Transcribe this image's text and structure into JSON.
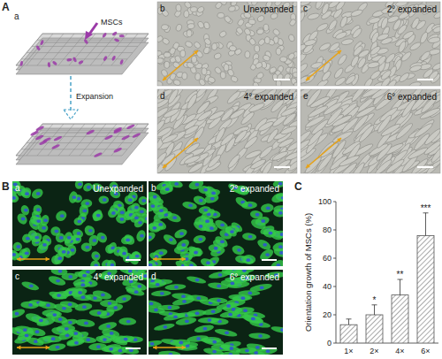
{
  "panel_labels": [
    "A",
    "B",
    "C"
  ],
  "panel_a": {
    "schematic_letter": "a",
    "cells_label": "MSCs",
    "arrow_label": "Expansion",
    "images": [
      {
        "letter": "b",
        "label": "Unexpanded"
      },
      {
        "letter": "c",
        "label": "2° expanded"
      },
      {
        "letter": "d",
        "label": "4° expanded"
      },
      {
        "letter": "e",
        "label": "6° expanded"
      }
    ]
  },
  "panel_b": {
    "images": [
      {
        "letter": "a",
        "label": "Unexpanded"
      },
      {
        "letter": "b",
        "label": "2° expanded"
      },
      {
        "letter": "c",
        "label": "4° expanded"
      },
      {
        "letter": "d",
        "label": "6° expanded"
      }
    ]
  },
  "chart_data": {
    "type": "bar",
    "y_label": "Orientation growth of MSCs (%)",
    "categories": [
      "1×",
      "2×",
      "4×",
      "6×"
    ],
    "values": [
      13,
      20,
      34,
      76
    ],
    "errors": [
      4,
      7,
      11,
      16
    ],
    "annotations": [
      null,
      "*",
      "**",
      "***"
    ],
    "color": "#555555",
    "ylim": [
      0,
      100
    ],
    "yticks": [
      0,
      20,
      40,
      60,
      80,
      100
    ]
  }
}
